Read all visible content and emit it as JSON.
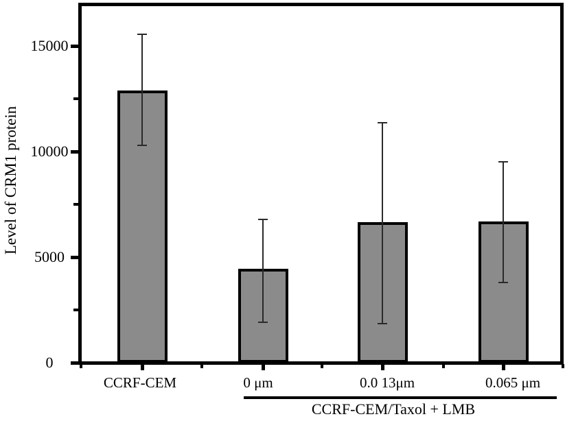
{
  "chart_data": {
    "type": "bar",
    "title": "",
    "xlabel": "",
    "ylabel": "Level of CRM1 protein",
    "categories": [
      "CCRF-CEM",
      "0 μm",
      "0.0 13μm",
      "0.065 μm"
    ],
    "values": [
      12900,
      4450,
      6650,
      6700
    ],
    "error_plus": [
      2650,
      2350,
      4700,
      2800
    ],
    "error_minus": [
      2600,
      2550,
      4800,
      2900
    ],
    "ylim": [
      0,
      16900
    ],
    "yticks_major": [
      0,
      5000,
      10000,
      15000
    ],
    "yticks_minor": [
      2500,
      7500,
      12500
    ],
    "grid": false,
    "legend": null,
    "group_bracket": {
      "label": "CCRF-CEM/Taxol + LMB",
      "covers": [
        "0 μm",
        "0.0 13μm",
        "0.065 μm"
      ]
    },
    "colors": {
      "bar_fill": "#8b8b8b",
      "bar_border": "#000000",
      "error_bar": "#2a2a2a",
      "axis": "#000000",
      "background": "#ffffff"
    }
  }
}
